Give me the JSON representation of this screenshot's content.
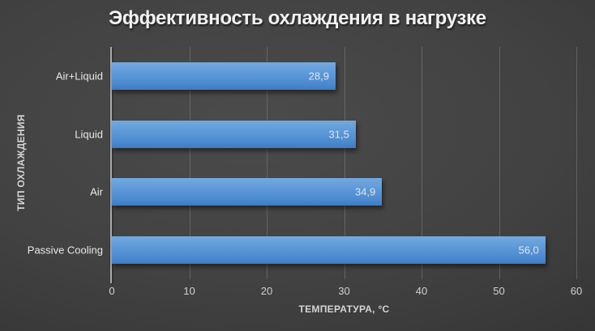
{
  "chart": {
    "title": "Эффективность охлаждения в нагрузке",
    "x_axis_title": "ТЕМПЕРАТУРА, °C",
    "y_axis_title": "ТИП ОХЛАЖДЕНИЯ"
  },
  "chart_data": {
    "type": "bar",
    "orientation": "horizontal",
    "title": "Эффективность охлаждения в нагрузке",
    "categories": [
      "Air+Liquid",
      "Liquid",
      "Air",
      "Passive Cooling"
    ],
    "values": [
      28.9,
      31.5,
      34.9,
      56.0
    ],
    "value_labels": [
      "28,9",
      "31,5",
      "34,9",
      "56,0"
    ],
    "xlabel": "ТЕМПЕРАТУРА, °C",
    "ylabel": "ТИП ОХЛАЖДЕНИЯ",
    "xlim": [
      0,
      60
    ],
    "xticks": [
      0,
      10,
      20,
      30,
      40,
      50,
      60
    ],
    "grid": "vertical-only",
    "legend": "none",
    "colors": {
      "bar_top": "#75a9df",
      "bar_bottom": "#3d7ac2",
      "background_center": "#4b4b4b",
      "background_edge": "#2a2a2a",
      "gridline": "#606060",
      "axis_line": "#aaaaaa",
      "title_text": "#f2f2f2",
      "label_text": "#e4e4e4"
    }
  }
}
